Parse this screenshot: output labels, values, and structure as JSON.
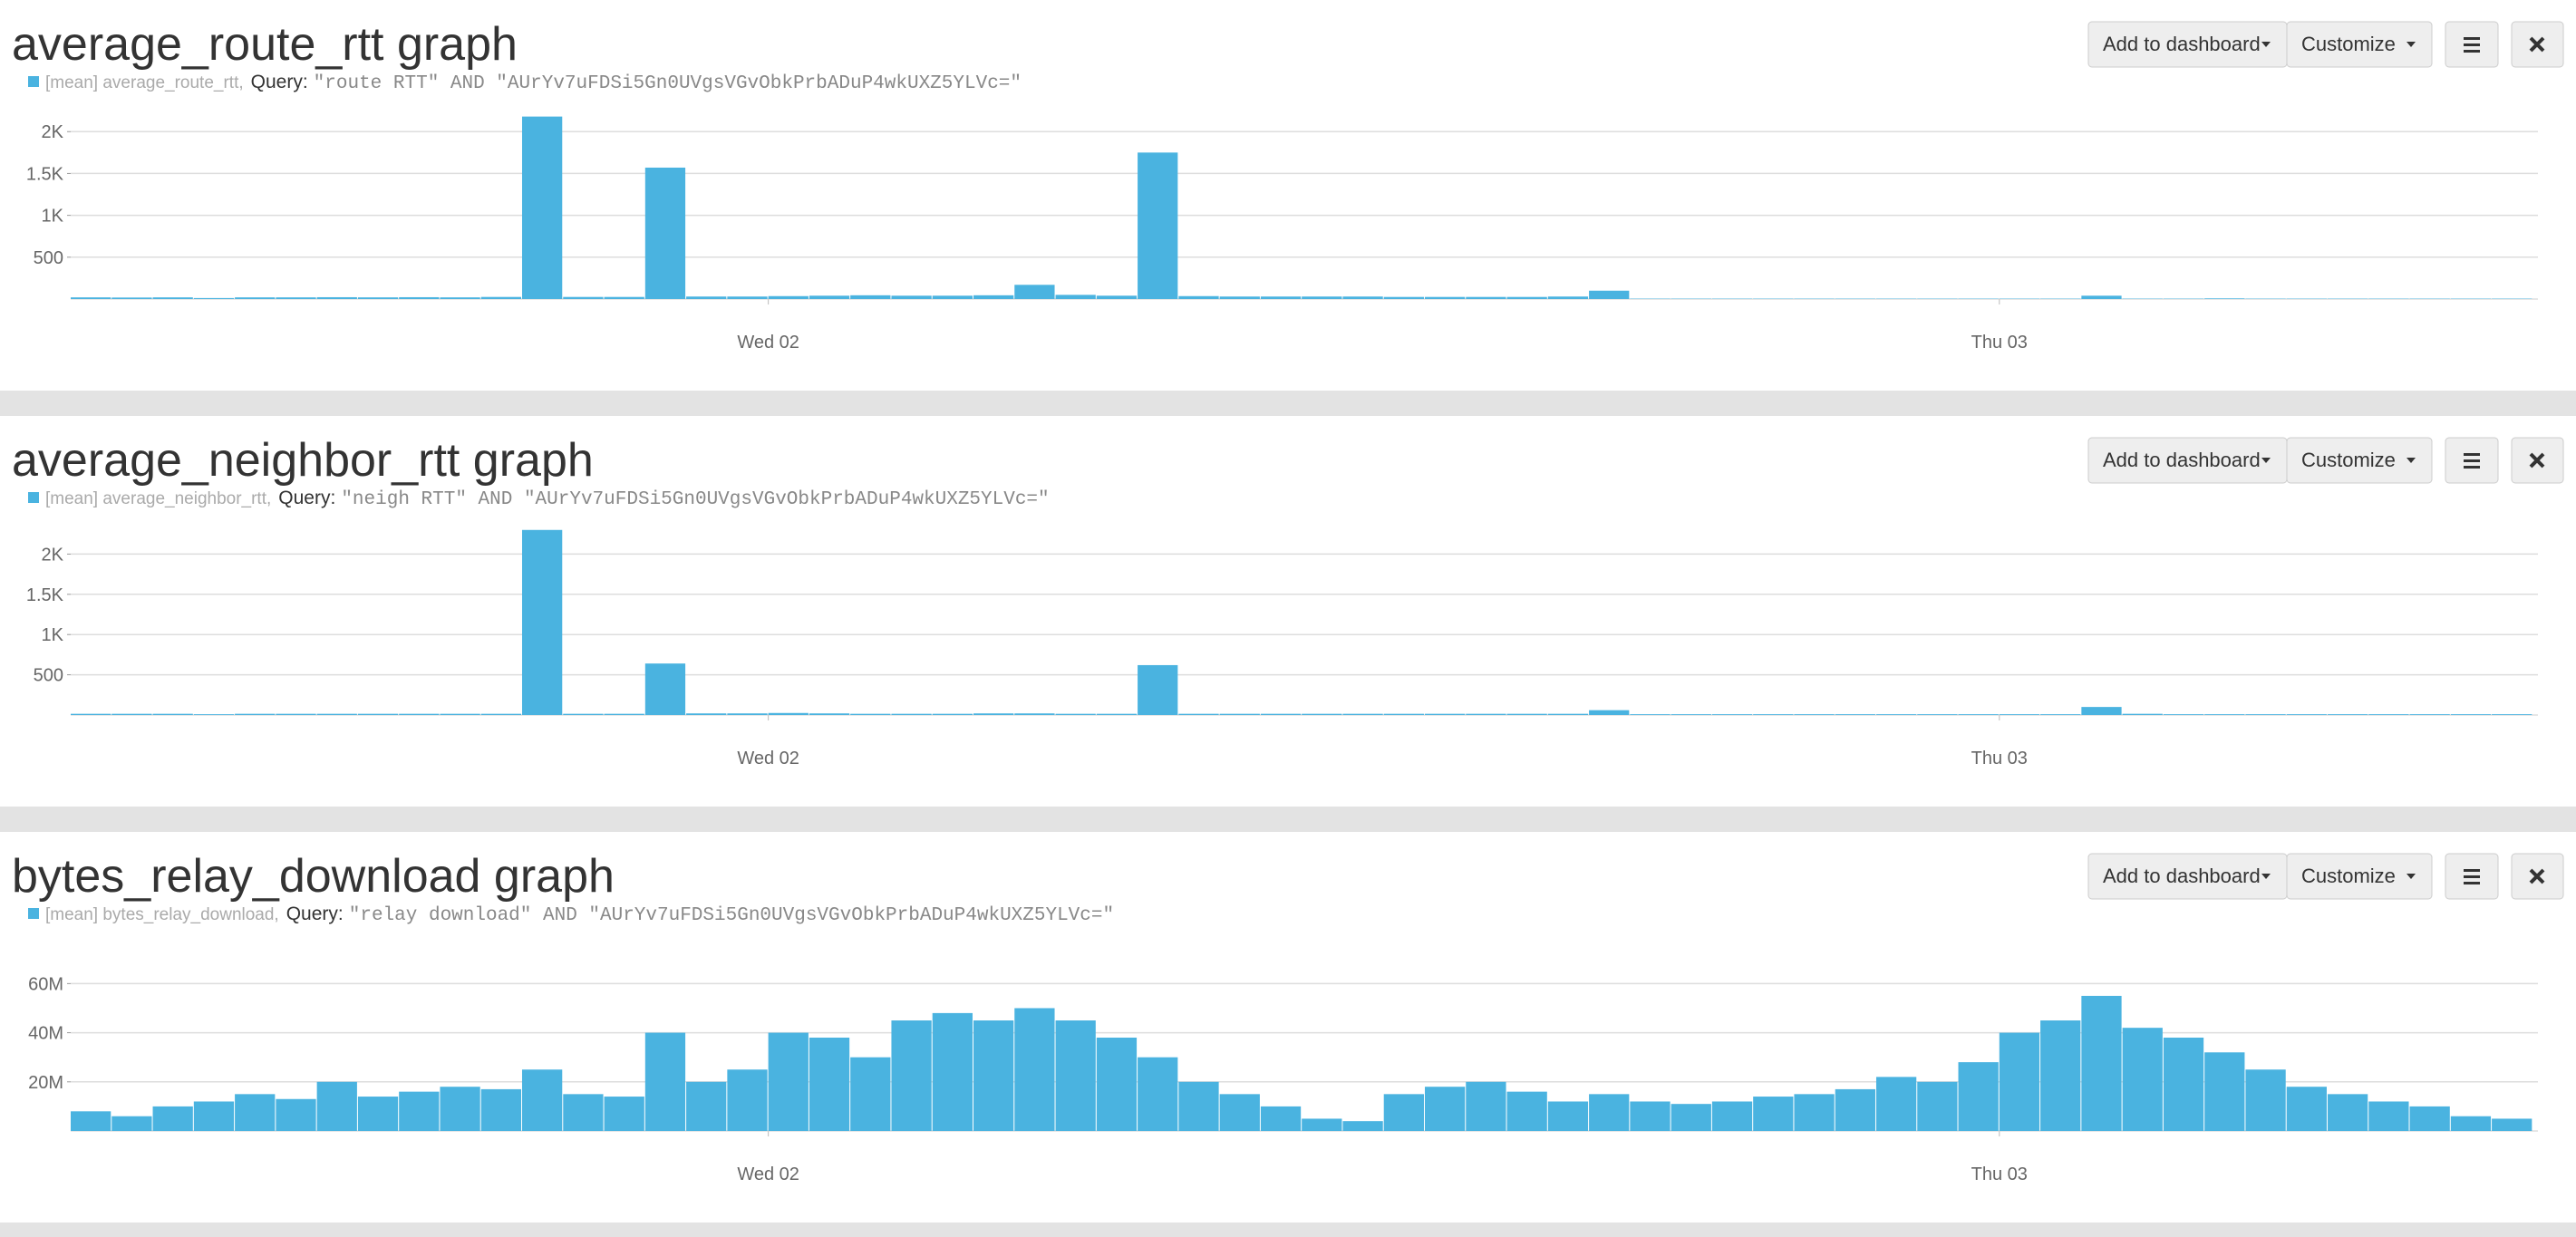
{
  "chart_data": [
    {
      "type": "bar",
      "title": "average_route_rtt graph",
      "query_label": "Query:",
      "query": "\"route RTT\" AND \"AUrYv7uFDSi5Gn0UVgsVGvObkPrbADuP4wkUXZ5YLVc=\"",
      "buttons": [
        "Add to dashboard",
        "Customize"
      ],
      "x": [
        -13.6,
        -12.8,
        -12,
        -11.2,
        -10.4,
        -9.6,
        -8.8,
        -8,
        -7.2,
        -6.4,
        -5.6,
        -4.8,
        -4,
        -3.2,
        -2.4,
        -1.6,
        -0.8,
        0,
        0.8,
        1.6,
        2.4,
        3.2,
        4,
        4.8,
        5.6,
        6.4,
        7.2,
        8,
        8.8,
        9.6,
        10.4,
        11.2,
        12,
        12.8,
        13.6,
        14.4,
        15.2,
        16,
        16.8,
        17.6,
        18.4,
        19.2,
        20,
        20.8,
        21.6,
        22.4,
        23.2,
        24,
        24.8,
        25.6,
        26.4,
        27.2,
        28,
        28.8,
        29.6,
        30.4,
        31.2,
        32,
        32.8,
        33.6
      ],
      "series": [
        {
          "name": "[mean] average_route_rtt,",
          "color": "#4ab3e0",
          "values": [
            20,
            18,
            20,
            12,
            20,
            20,
            22,
            20,
            22,
            20,
            25,
            2180,
            25,
            25,
            1570,
            30,
            30,
            35,
            40,
            45,
            40,
            40,
            45,
            170,
            50,
            40,
            1750,
            35,
            30,
            30,
            30,
            30,
            25,
            25,
            25,
            25,
            30,
            100,
            5,
            5,
            5,
            5,
            5,
            5,
            5,
            5,
            5,
            5,
            5,
            40,
            5,
            5,
            8,
            5,
            5,
            5,
            5,
            5,
            5,
            5
          ]
        }
      ],
      "xlim": [
        -13.6,
        34.5
      ],
      "xticks": [
        {
          "value": 0,
          "label": "Wed 02"
        },
        {
          "value": 24,
          "label": "Thu 03"
        }
      ],
      "ylim": [
        0,
        2230
      ],
      "yticks": [
        500,
        {
          "value": 1000,
          "label": "1K"
        },
        {
          "value": 1500,
          "label": "1.5K"
        },
        {
          "value": 2000,
          "label": "2K"
        }
      ],
      "grid": true
    },
    {
      "type": "bar",
      "title": "average_neighbor_rtt graph",
      "query_label": "Query:",
      "query": "\"neigh RTT\" AND \"AUrYv7uFDSi5Gn0UVgsVGvObkPrbADuP4wkUXZ5YLVc=\"",
      "buttons": [
        "Add to dashboard",
        "Customize"
      ],
      "x": [
        -13.6,
        -12.8,
        -12,
        -11.2,
        -10.4,
        -9.6,
        -8.8,
        -8,
        -7.2,
        -6.4,
        -5.6,
        -4.8,
        -4,
        -3.2,
        -2.4,
        -1.6,
        -0.8,
        0,
        0.8,
        1.6,
        2.4,
        3.2,
        4,
        4.8,
        5.6,
        6.4,
        7.2,
        8,
        8.8,
        9.6,
        10.4,
        11.2,
        12,
        12.8,
        13.6,
        14.4,
        15.2,
        16,
        16.8,
        17.6,
        18.4,
        19.2,
        20,
        20.8,
        21.6,
        22.4,
        23.2,
        24,
        24.8,
        25.6,
        26.4,
        27.2,
        28,
        28.8,
        29.6,
        30.4,
        31.2,
        32,
        32.8,
        33.6
      ],
      "series": [
        {
          "name": "[mean] average_neighbor_rtt,",
          "color": "#4ab3e0",
          "values": [
            15,
            15,
            15,
            10,
            15,
            15,
            15,
            15,
            15,
            15,
            15,
            2300,
            15,
            15,
            640,
            20,
            20,
            25,
            20,
            15,
            15,
            15,
            20,
            20,
            15,
            15,
            620,
            15,
            15,
            15,
            15,
            15,
            15,
            15,
            15,
            15,
            15,
            60,
            10,
            10,
            10,
            10,
            10,
            10,
            10,
            10,
            10,
            10,
            10,
            100,
            15,
            10,
            10,
            10,
            10,
            10,
            10,
            10,
            10,
            10
          ]
        }
      ],
      "xlim": [
        -13.6,
        34.5
      ],
      "xticks": [
        {
          "value": 0,
          "label": "Wed 02"
        },
        {
          "value": 24,
          "label": "Thu 03"
        }
      ],
      "ylim": [
        0,
        2320
      ],
      "yticks": [
        500,
        {
          "value": 1000,
          "label": "1K"
        },
        {
          "value": 1500,
          "label": "1.5K"
        },
        {
          "value": 2000,
          "label": "2K"
        }
      ],
      "grid": true
    },
    {
      "type": "bar",
      "title": "bytes_relay_download graph",
      "query_label": "Query:",
      "query": "\"relay download\" AND \"AUrYv7uFDSi5Gn0UVgsVGvObkPrbADuP4wkUXZ5YLVc=\"",
      "buttons": [
        "Add to dashboard",
        "Customize"
      ],
      "x": [
        -13.6,
        -12.8,
        -12,
        -11.2,
        -10.4,
        -9.6,
        -8.8,
        -8,
        -7.2,
        -6.4,
        -5.6,
        -4.8,
        -4,
        -3.2,
        -2.4,
        -1.6,
        -0.8,
        0,
        0.8,
        1.6,
        2.4,
        3.2,
        4,
        4.8,
        5.6,
        6.4,
        7.2,
        8,
        8.8,
        9.6,
        10.4,
        11.2,
        12,
        12.8,
        13.6,
        14.4,
        15.2,
        16,
        16.8,
        17.6,
        18.4,
        19.2,
        20,
        20.8,
        21.6,
        22.4,
        23.2,
        24,
        24.8,
        25.6,
        26.4,
        27.2,
        28,
        28.8,
        29.6,
        30.4,
        31.2,
        32,
        32.8,
        33.6
      ],
      "series": [
        {
          "name": "[mean] bytes_relay_download,",
          "color": "#4ab3e0",
          "values": [
            8000000,
            6000000,
            10000000,
            12000000,
            15000000,
            13000000,
            20000000,
            14000000,
            16000000,
            18000000,
            17000000,
            25000000,
            15000000,
            14000000,
            40000000,
            20000000,
            25000000,
            40000000,
            38000000,
            30000000,
            45000000,
            48000000,
            45000000,
            50000000,
            45000000,
            38000000,
            30000000,
            20000000,
            15000000,
            10000000,
            5000000,
            4000000,
            15000000,
            18000000,
            20000000,
            16000000,
            12000000,
            15000000,
            12000000,
            11000000,
            12000000,
            14000000,
            15000000,
            17000000,
            22000000,
            20000000,
            28000000,
            40000000,
            45000000,
            55000000,
            42000000,
            38000000,
            32000000,
            25000000,
            18000000,
            15000000,
            12000000,
            10000000,
            6000000,
            5000000
          ]
        }
      ],
      "xlim": [
        -13.6,
        34.5
      ],
      "xticks": [
        {
          "value": 0,
          "label": "Wed 02"
        },
        {
          "value": 24,
          "label": "Thu 03"
        }
      ],
      "ylim": [
        0,
        76000000
      ],
      "yticks": [
        {
          "value": 20000000,
          "label": "20M"
        },
        {
          "value": 40000000,
          "label": "40M"
        },
        {
          "value": 60000000,
          "label": "60M"
        }
      ],
      "grid": true
    }
  ]
}
